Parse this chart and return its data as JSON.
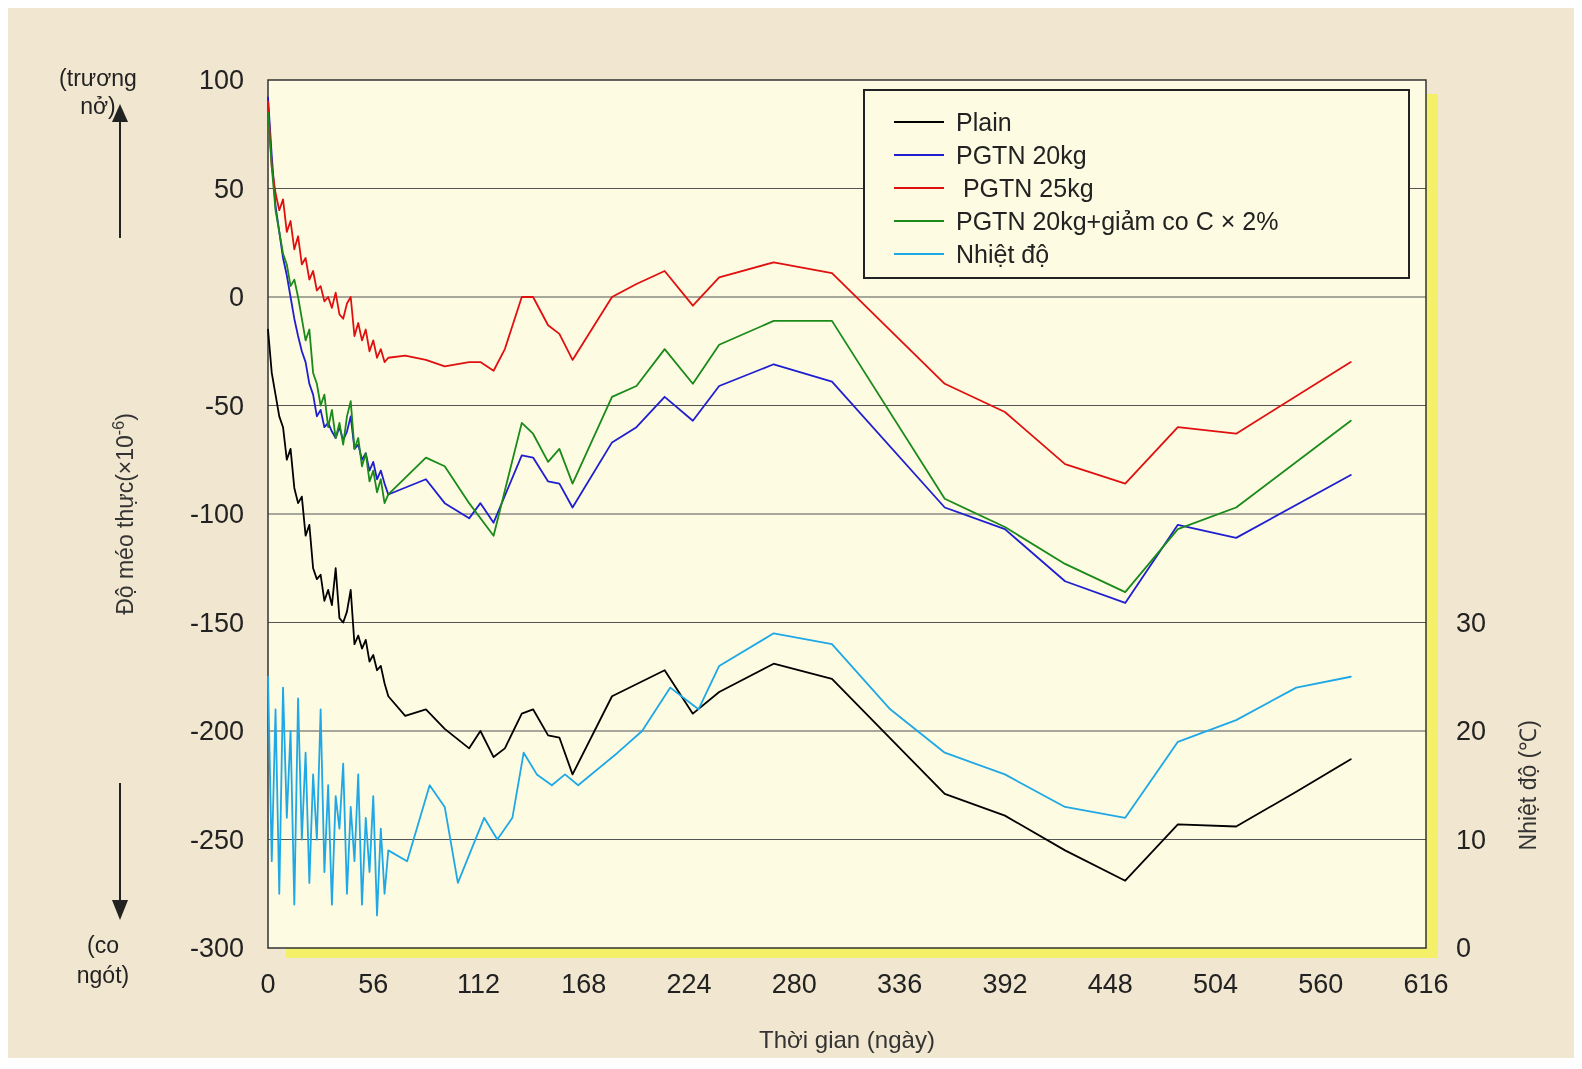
{
  "chart_data": {
    "type": "line",
    "xlabel": "Thời gian (ngày)",
    "ylabel": "Độ méo thực(×10$^{-6}$)",
    "y2label": "Nhiệt độ (℃)",
    "annotations": [
      "(trương nở)",
      "(co ngót)"
    ],
    "xlim": [
      0,
      616
    ],
    "xticks": [
      0,
      56,
      112,
      168,
      224,
      280,
      336,
      392,
      448,
      504,
      560,
      616
    ],
    "ylim": [
      -300,
      100
    ],
    "yticks": [
      100,
      50,
      0,
      -50,
      -100,
      -150,
      -200,
      -250,
      -300
    ],
    "y2lim": [
      0,
      80
    ],
    "y2ticks": [
      0,
      10,
      20,
      30
    ],
    "grid": "y",
    "legend": "top right",
    "line_style": "solid",
    "marker": "none",
    "series": [
      {
        "name": "Plain",
        "color": "#000000",
        "x": [
          0,
          2,
          4,
          6,
          8,
          10,
          12,
          14,
          16,
          18,
          20,
          22,
          24,
          26,
          28,
          30,
          32,
          34,
          36,
          38,
          40,
          42,
          44,
          46,
          48,
          50,
          52,
          54,
          56,
          58,
          60,
          62,
          64,
          73,
          84,
          94,
          107,
          113,
          120,
          126,
          135,
          141,
          149,
          155,
          162,
          183,
          211,
          226,
          240,
          269,
          300,
          360,
          392,
          424,
          456,
          484,
          515,
          547,
          576
        ],
        "values": [
          -15,
          -35,
          -45,
          -55,
          -60,
          -75,
          -70,
          -88,
          -95,
          -92,
          -110,
          -105,
          -125,
          -130,
          -128,
          -140,
          -135,
          -142,
          -125,
          -148,
          -150,
          -145,
          -135,
          -160,
          -156,
          -162,
          -158,
          -168,
          -165,
          -172,
          -170,
          -178,
          -184,
          -193,
          -190,
          -199,
          -208,
          -200,
          -212,
          -208,
          -192,
          -190,
          -202,
          -203,
          -220,
          -184,
          -172,
          -192,
          -182,
          -169,
          -176,
          -229,
          -239,
          -255,
          -269,
          -243,
          -244,
          -228,
          -213
        ]
      },
      {
        "name": "PGTN 20kg",
        "color": "#1f1fd0",
        "x": [
          0,
          2,
          4,
          6,
          8,
          10,
          12,
          14,
          16,
          18,
          20,
          22,
          24,
          26,
          28,
          30,
          32,
          34,
          36,
          38,
          40,
          42,
          44,
          46,
          48,
          50,
          52,
          54,
          56,
          58,
          60,
          62,
          64,
          84,
          94,
          107,
          113,
          120,
          135,
          141,
          149,
          155,
          162,
          183,
          196,
          211,
          226,
          240,
          269,
          300,
          360,
          392,
          424,
          456,
          484,
          515,
          576
        ],
        "values": [
          92,
          65,
          42,
          30,
          18,
          10,
          0,
          -10,
          -18,
          -25,
          -30,
          -40,
          -45,
          -55,
          -52,
          -60,
          -58,
          -62,
          -65,
          -60,
          -66,
          -62,
          -55,
          -70,
          -68,
          -75,
          -72,
          -80,
          -76,
          -84,
          -80,
          -86,
          -91,
          -84,
          -95,
          -102,
          -95,
          -104,
          -73,
          -74,
          -85,
          -86,
          -97,
          -67,
          -60,
          -46,
          -57,
          -41,
          -31,
          -39,
          -97,
          -107,
          -131,
          -141,
          -105,
          -111,
          -82
        ]
      },
      {
        "name": " PGTN 25kg",
        "color": "#e01010",
        "x": [
          0,
          2,
          4,
          6,
          8,
          10,
          12,
          14,
          16,
          18,
          20,
          22,
          24,
          26,
          28,
          30,
          32,
          34,
          36,
          38,
          40,
          42,
          44,
          46,
          48,
          50,
          52,
          54,
          56,
          58,
          60,
          62,
          64,
          73,
          84,
          94,
          107,
          113,
          120,
          126,
          135,
          141,
          149,
          155,
          162,
          183,
          196,
          211,
          226,
          240,
          269,
          300,
          360,
          392,
          424,
          456,
          484,
          515,
          576
        ],
        "values": [
          90,
          60,
          48,
          40,
          45,
          30,
          35,
          22,
          28,
          15,
          18,
          8,
          12,
          3,
          5,
          -2,
          0,
          -5,
          2,
          -8,
          -10,
          -3,
          0,
          -18,
          -12,
          -20,
          -15,
          -25,
          -20,
          -28,
          -24,
          -30,
          -28,
          -27,
          -29,
          -32,
          -30,
          -30,
          -34,
          -24,
          0,
          0,
          -13,
          -17,
          -29,
          0,
          6,
          12,
          -4,
          9,
          16,
          11,
          -40,
          -53,
          -77,
          -86,
          -60,
          -63,
          -30
        ]
      },
      {
        "name": "PGTN 20kg+giảm co C × 2%",
        "color": "#1a8a1a",
        "x": [
          0,
          2,
          4,
          6,
          8,
          10,
          12,
          14,
          16,
          18,
          20,
          22,
          24,
          26,
          28,
          30,
          32,
          34,
          36,
          38,
          40,
          42,
          44,
          46,
          48,
          50,
          52,
          54,
          56,
          58,
          60,
          62,
          64,
          84,
          94,
          107,
          120,
          135,
          141,
          149,
          155,
          162,
          183,
          196,
          211,
          226,
          240,
          269,
          300,
          360,
          392,
          424,
          456,
          484,
          515,
          576
        ],
        "values": [
          85,
          60,
          40,
          30,
          20,
          15,
          5,
          8,
          0,
          -10,
          -20,
          -15,
          -35,
          -40,
          -50,
          -45,
          -60,
          -52,
          -65,
          -58,
          -68,
          -55,
          -48,
          -70,
          -65,
          -78,
          -72,
          -85,
          -80,
          -90,
          -84,
          -95,
          -91,
          -74,
          -78,
          -95,
          -110,
          -58,
          -63,
          -76,
          -70,
          -86,
          -46,
          -41,
          -24,
          -40,
          -22,
          -11,
          -11,
          -93,
          -106,
          -123,
          -136,
          -107,
          -97,
          -57
        ]
      },
      {
        "name": "Nhiệt độ",
        "color": "#1ea8e6",
        "axis": "y2",
        "x": [
          0,
          2,
          4,
          6,
          8,
          10,
          12,
          14,
          16,
          18,
          20,
          22,
          24,
          26,
          28,
          30,
          32,
          34,
          36,
          38,
          40,
          42,
          44,
          46,
          48,
          50,
          52,
          54,
          56,
          58,
          60,
          62,
          64,
          74,
          86,
          94,
          101,
          115,
          122,
          130,
          136,
          143,
          151,
          158,
          165,
          186,
          199,
          214,
          229,
          240,
          269,
          300,
          331,
          360,
          392,
          424,
          456,
          484,
          515,
          547,
          576
        ],
        "values": [
          25,
          8,
          22,
          5,
          24,
          12,
          20,
          4,
          23,
          10,
          18,
          6,
          16,
          10,
          22,
          7,
          15,
          4,
          14,
          11,
          17,
          5,
          13,
          8,
          16,
          4,
          12,
          7,
          14,
          3,
          11,
          5,
          9,
          8,
          15,
          13,
          6,
          12,
          10,
          12,
          18,
          16,
          15,
          16,
          15,
          18,
          20,
          24,
          22,
          26,
          29,
          28,
          22,
          18,
          16,
          13,
          12,
          19,
          21,
          24,
          25
        ]
      }
    ]
  }
}
